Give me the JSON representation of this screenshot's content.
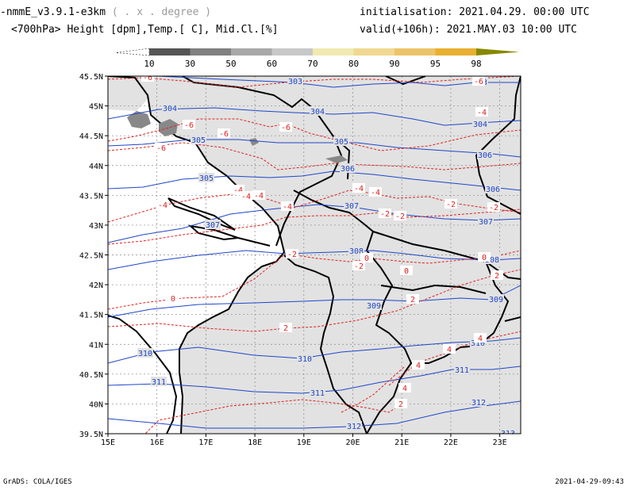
{
  "header": {
    "model_title": "-nmmE_v3.9.1-e3km",
    "model_sub": "( . x . degree )",
    "subtitle": "<700hPa> Height [dpm],Temp.[ C], Mid.Cl.[%]",
    "init_label": "initialisation: 2021.04.29.  00:00 UTC",
    "valid_label": "valid(+106h): 2021.MAY.03 10:00 UTC"
  },
  "colorbar": {
    "labels": [
      "10",
      "30",
      "50",
      "60",
      "70",
      "80",
      "90",
      "95",
      "98"
    ],
    "colors": [
      "#555555",
      "#808080",
      "#a8a8a8",
      "#c8c8c8",
      "#f0eab0",
      "#f0d890",
      "#ecc468",
      "#e8b030"
    ],
    "end_color": "#888800"
  },
  "map": {
    "lat_labels": [
      "45.5N",
      "45N",
      "44.5N",
      "44N",
      "43.5N",
      "43N",
      "42.5N",
      "42N",
      "41.5N",
      "41N",
      "40.5N",
      "40N",
      "39.5N"
    ],
    "lon_labels": [
      "15E",
      "16E",
      "17E",
      "18E",
      "19E",
      "20E",
      "21E",
      "22E",
      "23E"
    ],
    "height_labels": [
      "303",
      "304",
      "304",
      "303",
      "304",
      "305",
      "305",
      "306",
      "306",
      "305",
      "306",
      "307",
      "307",
      "307",
      "308",
      "308",
      "309",
      "309",
      "310",
      "310",
      "310",
      "311",
      "311",
      "311",
      "312",
      "312",
      "313"
    ],
    "temp_labels": [
      "-6",
      "-6",
      "-6",
      "-6",
      "-6",
      "-6",
      "-4",
      "-4",
      "-4",
      "-4",
      "-4",
      "-4",
      "-4",
      "-4",
      "-2",
      "-2",
      "-2",
      "-2",
      "-2",
      "-2",
      "0",
      "0",
      "0",
      "0",
      "2",
      "2",
      "2",
      "4",
      "4",
      "4",
      "4",
      "2"
    ],
    "colors": {
      "land": "#e2e2e2",
      "height": "#1e46c8",
      "temp": "#e02020",
      "coast": "#000000"
    }
  },
  "footer": {
    "left": "GrADS: COLA/IGES",
    "right": "2021-04-29-09:43"
  }
}
